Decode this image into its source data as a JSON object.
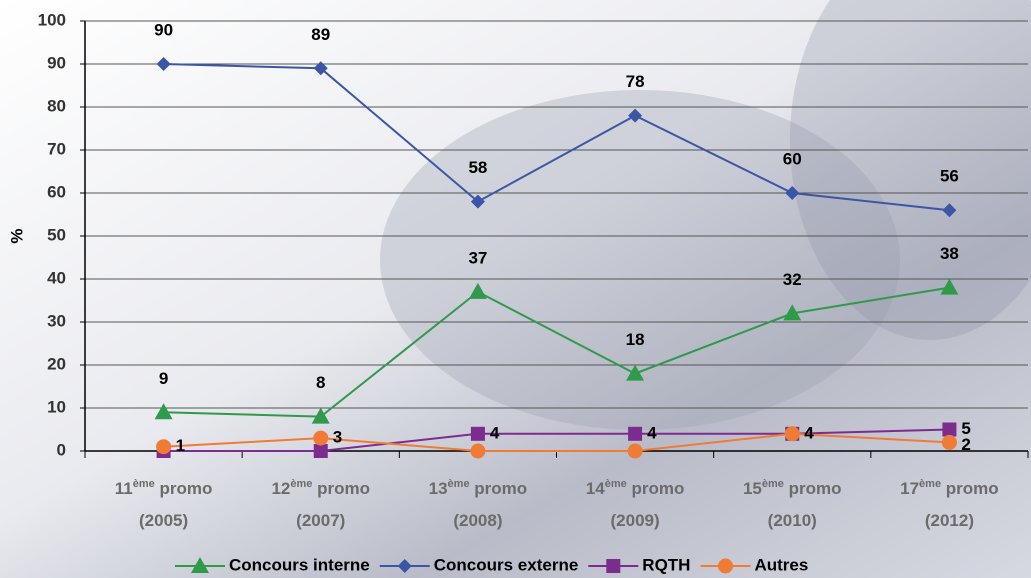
{
  "chart_data": {
    "type": "line",
    "y_label": "%",
    "categories": [
      "11ème promo (2005)",
      "12ème promo (2007)",
      "13ème promo (2008)",
      "14ème promo (2009)",
      "15ème promo (2010)",
      "17ème promo (2012)"
    ],
    "series": [
      {
        "name": "Concours interne",
        "color": "#2f9a4a",
        "marker": "triangle",
        "values": [
          9,
          8,
          37,
          18,
          32,
          38
        ],
        "value_labels": [
          "9",
          "8",
          "37",
          "18",
          "32",
          "38"
        ]
      },
      {
        "name": "Concours externe",
        "color": "#3b56a6",
        "marker": "diamond",
        "values": [
          90,
          89,
          58,
          78,
          60,
          56
        ],
        "value_labels": [
          "90",
          "89",
          "58",
          "78",
          "60",
          "56"
        ]
      },
      {
        "name": "RQTH",
        "color": "#7b2c8e",
        "marker": "square",
        "values": [
          0,
          0,
          4,
          4,
          4,
          5
        ],
        "value_labels": [
          null,
          null,
          "4",
          "4",
          "4",
          "5"
        ]
      },
      {
        "name": "Autres",
        "color": "#f07b35",
        "marker": "circle",
        "values": [
          1,
          3,
          0,
          0,
          4,
          2
        ],
        "value_labels": [
          "1",
          "3",
          null,
          null,
          "4",
          "2"
        ]
      }
    ],
    "ylim": [
      0,
      100
    ],
    "yticks": [
      0,
      10,
      20,
      30,
      40,
      50,
      60,
      70,
      80,
      90,
      100
    ],
    "grid": true
  }
}
